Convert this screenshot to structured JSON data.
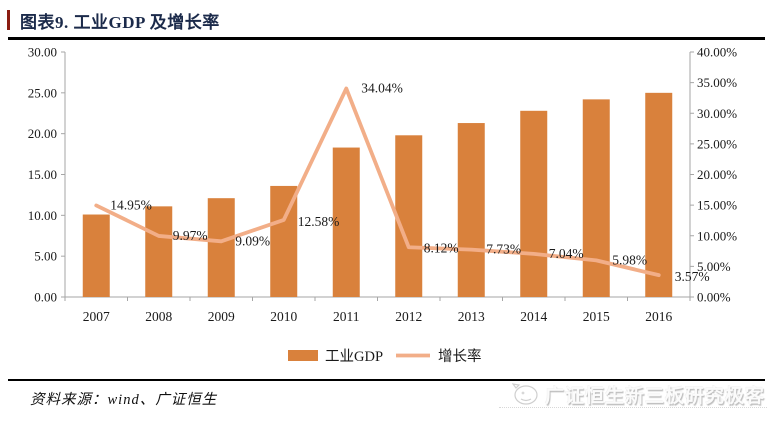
{
  "figure": {
    "title": "图表9. 工业GDP 及增长率",
    "source_note": "资料来源：wind、广证恒生",
    "watermark": "广证恒生新三板研究极客"
  },
  "colors": {
    "bar": "#D9813C",
    "line": "#F2AE88",
    "axis": "#A6A6A6",
    "text": "#1A1A1A",
    "title_text": "#1B2A4A",
    "accent_red": "#8B1D12"
  },
  "chart_data": {
    "type": "bar",
    "subtype": "combo-bar-line-dual-axis",
    "categories": [
      "2007",
      "2008",
      "2009",
      "2010",
      "2011",
      "2012",
      "2013",
      "2014",
      "2015",
      "2016"
    ],
    "series": [
      {
        "name": "工业GDP",
        "type": "bar",
        "y_axis": "left",
        "values": [
          10.1,
          11.1,
          12.1,
          13.6,
          18.3,
          19.8,
          21.3,
          22.8,
          24.2,
          25.0
        ]
      },
      {
        "name": "增长率",
        "type": "line",
        "y_axis": "right",
        "values": [
          14.95,
          9.97,
          9.09,
          12.58,
          34.04,
          8.12,
          7.73,
          7.04,
          5.98,
          3.57
        ],
        "point_labels": [
          "14.95%",
          "9.97%",
          "9.09%",
          "12.58%",
          "34.04%",
          "8.12%",
          "7.73%",
          "7.04%",
          "5.98%",
          "3.57%"
        ]
      }
    ],
    "left_axis": {
      "min": 0,
      "max": 30,
      "step": 5,
      "tick_labels": [
        "0.00",
        "5.00",
        "10.00",
        "15.00",
        "20.00",
        "25.00",
        "30.00"
      ]
    },
    "right_axis": {
      "min": 0,
      "max": 40,
      "step": 5,
      "tick_labels": [
        "0.00%",
        "5.00%",
        "10.00%",
        "15.00%",
        "20.00%",
        "25.00%",
        "30.00%",
        "35.00%",
        "40.00%"
      ]
    },
    "legend": {
      "position": "bottom",
      "items": [
        "工业GDP",
        "增长率"
      ]
    },
    "grid": false
  }
}
